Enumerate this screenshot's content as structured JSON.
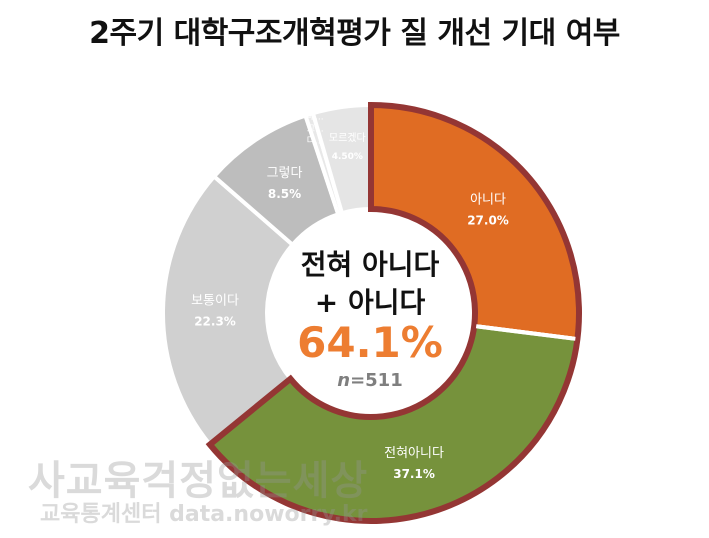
{
  "chart_data": {
    "type": "pie",
    "title": "2주기 대학구조개혁평가 질 개선 기대 여부",
    "categories": [
      "아니다",
      "전혀아니다",
      "보통이다",
      "그렇다",
      "매우 그렇다",
      "모르겠다"
    ],
    "values": [
      27.0,
      37.1,
      22.3,
      8.5,
      0.6,
      4.5
    ],
    "labels": [
      "아니다",
      "전혀아니다",
      "보통이다",
      "그렇다",
      "매...\n그...\n다...",
      "모르겠다"
    ],
    "value_labels": [
      "27.0%",
      "37.1%",
      "22.3%",
      "8.5%",
      "",
      "4.50%"
    ],
    "colors": [
      "#E06C23",
      "#76923C",
      "#D0D0D0",
      "#BDBDBD",
      "#E8E8E8",
      "#E5E5E5"
    ],
    "highlight_border": "#943634",
    "grid": false,
    "legend": "none"
  },
  "center": {
    "line1": "전혀 아니다",
    "line2": "+ 아니다",
    "value": "64.1%",
    "n_label": "n",
    "n_value": "=511"
  },
  "watermark": {
    "line1": "사교육걱정없는세상",
    "line2": "교육통계센터 data.noworry.kr"
  }
}
